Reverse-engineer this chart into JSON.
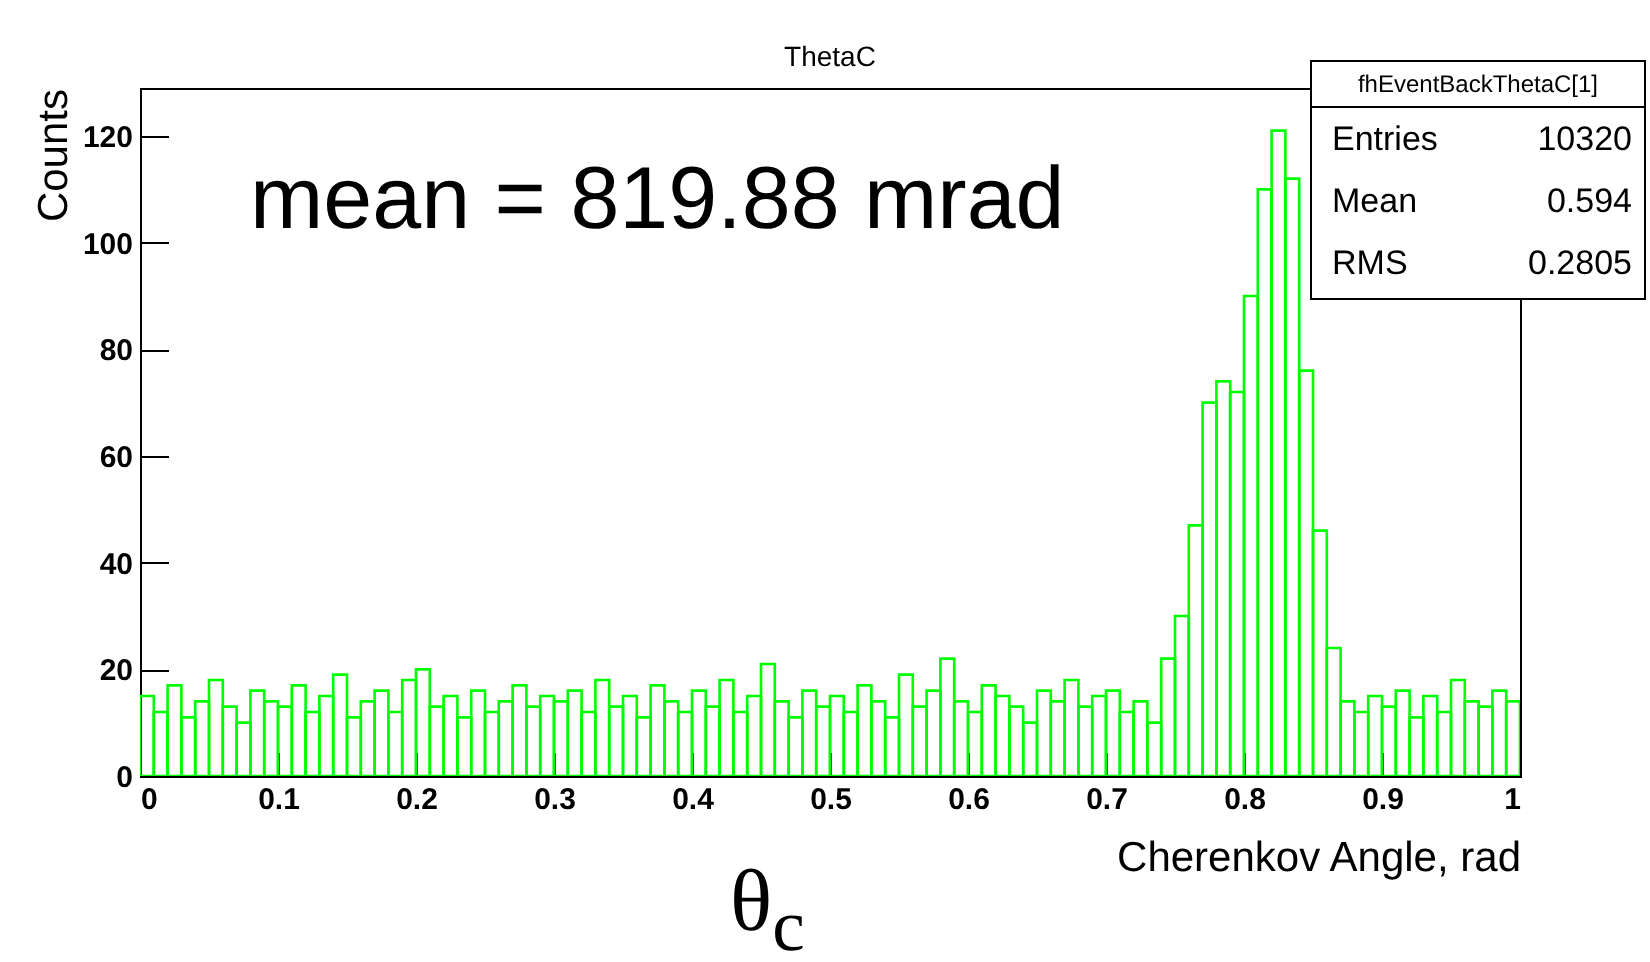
{
  "chart_data": {
    "type": "histogram",
    "title": "ThetaC",
    "xlabel": "Cherenkov Angle, rad",
    "ylabel": "Counts",
    "color": "#00ff00",
    "bins": [
      0,
      0.01,
      0.02,
      0.03,
      0.04,
      0.05,
      0.06,
      0.07,
      0.08,
      0.09,
      0.1,
      0.11,
      0.12,
      0.13,
      0.14,
      0.15,
      0.16,
      0.17,
      0.18,
      0.19,
      0.2,
      0.21,
      0.22,
      0.23,
      0.24,
      0.25,
      0.26,
      0.27,
      0.28,
      0.29,
      0.3,
      0.31,
      0.32,
      0.33,
      0.34,
      0.35,
      0.36,
      0.37,
      0.38,
      0.39,
      0.4,
      0.41,
      0.42,
      0.43,
      0.44,
      0.45,
      0.46,
      0.47,
      0.48,
      0.49,
      0.5,
      0.51,
      0.52,
      0.53,
      0.54,
      0.55,
      0.56,
      0.57,
      0.58,
      0.59,
      0.6,
      0.61,
      0.62,
      0.63,
      0.64,
      0.65,
      0.66,
      0.67,
      0.68,
      0.69,
      0.7,
      0.71,
      0.72,
      0.73,
      0.74,
      0.75,
      0.76,
      0.77,
      0.78,
      0.79,
      0.8,
      0.81,
      0.82,
      0.83,
      0.84,
      0.85,
      0.86,
      0.87,
      0.88,
      0.89,
      0.9,
      0.91,
      0.92,
      0.93,
      0.94,
      0.95,
      0.96,
      0.97,
      0.98,
      0.99,
      1
    ],
    "values": [
      15,
      12,
      17,
      11,
      14,
      18,
      13,
      10,
      16,
      14,
      13,
      17,
      12,
      15,
      19,
      11,
      14,
      16,
      12,
      18,
      20,
      13,
      15,
      11,
      16,
      12,
      14,
      17,
      13,
      15,
      14,
      16,
      12,
      18,
      13,
      15,
      11,
      17,
      14,
      12,
      16,
      13,
      18,
      12,
      15,
      21,
      14,
      11,
      16,
      13,
      15,
      12,
      17,
      14,
      11,
      19,
      13,
      16,
      22,
      14,
      12,
      17,
      15,
      13,
      10,
      16,
      14,
      18,
      13,
      15,
      16,
      12,
      14,
      10,
      22,
      30,
      47,
      70,
      74,
      72,
      90,
      110,
      121,
      112,
      76,
      46,
      24,
      14,
      12,
      15,
      13,
      16,
      11,
      15,
      12,
      18,
      14,
      13,
      16,
      14
    ],
    "xlim": [
      0,
      1
    ],
    "xticks": [
      0,
      0.1,
      0.2,
      0.3,
      0.4,
      0.5,
      0.6,
      0.7,
      0.8,
      0.9,
      1
    ],
    "ylim": [
      0,
      129
    ],
    "yticks": [
      0,
      20,
      40,
      60,
      80,
      100,
      120
    ],
    "annotations": [
      "mean = 819.88 mrad",
      "fhEventBackThetaC[1]",
      "Entries",
      "10320",
      "Mean",
      "0.594",
      "RMS",
      "0.2805",
      "θ$_{c}$"
    ]
  }
}
